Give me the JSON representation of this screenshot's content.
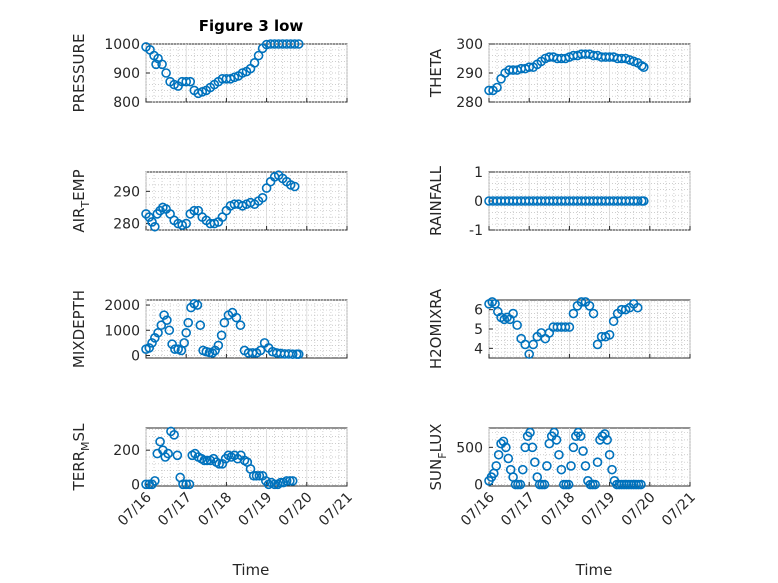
{
  "figure": {
    "title": "Figure 3 low",
    "xlabel": "Time",
    "xticks": [
      "07/16",
      "07/17",
      "07/18",
      "07/19",
      "07/20",
      "07/21"
    ],
    "xlim_days": [
      16,
      21
    ],
    "data_x_range_days": [
      16,
      19.85
    ],
    "marker": "circle",
    "color": "#0072bd"
  },
  "chart_data": [
    {
      "type": "scatter",
      "ylabel": "PRESSURE",
      "ylim": [
        800,
        1000
      ],
      "yticks": [
        "800",
        "900",
        "1000"
      ],
      "grid": true,
      "x_unit": "day of July",
      "x": [
        16.0,
        16.1,
        16.2,
        16.25,
        16.3,
        16.4,
        16.5,
        16.6,
        16.7,
        16.8,
        16.9,
        17.0,
        17.1,
        17.2,
        17.3,
        17.4,
        17.5,
        17.6,
        17.7,
        17.8,
        17.9,
        18.0,
        18.1,
        18.2,
        18.3,
        18.4,
        18.5,
        18.6,
        18.7,
        18.8,
        18.9,
        19.0,
        19.1,
        19.2,
        19.3,
        19.4,
        19.5,
        19.6,
        19.7,
        19.8
      ],
      "values": [
        990,
        980,
        960,
        930,
        950,
        930,
        900,
        870,
        860,
        855,
        870,
        870,
        870,
        840,
        830,
        835,
        840,
        850,
        860,
        870,
        880,
        880,
        880,
        885,
        890,
        900,
        905,
        915,
        935,
        960,
        985,
        998,
        1000,
        1000,
        1000,
        1000,
        1000,
        1000,
        1000,
        1000
      ]
    },
    {
      "type": "scatter",
      "ylabel": "THETA",
      "ylim": [
        280,
        300
      ],
      "yticks": [
        "280",
        "290",
        "300"
      ],
      "grid": true,
      "x_unit": "day of July",
      "x": [
        16.0,
        16.1,
        16.2,
        16.3,
        16.4,
        16.5,
        16.6,
        16.7,
        16.8,
        16.9,
        17.0,
        17.1,
        17.2,
        17.3,
        17.4,
        17.5,
        17.6,
        17.7,
        17.8,
        17.9,
        18.0,
        18.1,
        18.2,
        18.3,
        18.4,
        18.5,
        18.6,
        18.7,
        18.8,
        18.9,
        19.0,
        19.1,
        19.2,
        19.3,
        19.4,
        19.5,
        19.6,
        19.7,
        19.8,
        19.85
      ],
      "values": [
        284,
        284,
        285,
        288,
        290,
        291,
        291,
        291,
        291.5,
        291.5,
        292,
        292,
        293,
        294,
        295,
        295.5,
        295.5,
        295,
        295,
        295,
        295.5,
        296,
        296,
        296.5,
        296.5,
        296.5,
        296,
        296,
        295.5,
        295.5,
        295.5,
        295.5,
        295,
        295,
        295,
        294.5,
        294,
        293.5,
        292.5,
        292
      ]
    },
    {
      "type": "scatter",
      "ylabel": "AIR_TEMP",
      "ylim": [
        278,
        296
      ],
      "yticks": [
        "280",
        "290"
      ],
      "grid": true,
      "x_unit": "day of July",
      "x": [
        16.0,
        16.08,
        16.15,
        16.22,
        16.28,
        16.35,
        16.42,
        16.5,
        16.6,
        16.7,
        16.8,
        16.9,
        17.0,
        17.1,
        17.2,
        17.3,
        17.4,
        17.5,
        17.6,
        17.7,
        17.8,
        17.9,
        18.0,
        18.1,
        18.2,
        18.3,
        18.4,
        18.5,
        18.6,
        18.7,
        18.8,
        18.9,
        19.0,
        19.1,
        19.2,
        19.3,
        19.4,
        19.5,
        19.6,
        19.7
      ],
      "values": [
        283,
        282,
        280.5,
        279,
        283,
        284,
        285,
        284.5,
        283,
        281,
        280,
        279.5,
        280,
        283,
        284,
        284,
        282,
        281,
        280,
        280,
        280.5,
        282,
        284,
        285.5,
        286,
        286,
        285.5,
        286,
        286.5,
        286,
        287,
        288,
        291,
        293,
        294.5,
        295,
        294,
        293,
        292,
        291.5
      ]
    },
    {
      "type": "scatter",
      "ylabel": "RAINFALL",
      "ylim": [
        -1,
        1
      ],
      "yticks": [
        "-1",
        "0",
        "1"
      ],
      "grid": true,
      "x_unit": "day of July",
      "x": [
        16.0,
        16.1,
        16.2,
        16.3,
        16.4,
        16.5,
        16.6,
        16.7,
        16.8,
        16.9,
        17.0,
        17.1,
        17.2,
        17.3,
        17.4,
        17.5,
        17.6,
        17.7,
        17.8,
        17.9,
        18.0,
        18.1,
        18.2,
        18.3,
        18.4,
        18.5,
        18.6,
        18.7,
        18.8,
        18.9,
        19.0,
        19.1,
        19.2,
        19.3,
        19.4,
        19.5,
        19.6,
        19.7,
        19.8,
        19.85
      ],
      "values": [
        0,
        0,
        0,
        0,
        0,
        0,
        0,
        0,
        0,
        0,
        0,
        0,
        0,
        0,
        0,
        0,
        0,
        0,
        0,
        0,
        0,
        0,
        0,
        0,
        0,
        0,
        0,
        0,
        0,
        0,
        0,
        0,
        0,
        0,
        0,
        0,
        0,
        0,
        0,
        0
      ]
    },
    {
      "type": "scatter",
      "ylabel": "MIXDEPTH",
      "ylim": [
        -100,
        2200
      ],
      "yticks": [
        "0",
        "1000",
        "2000"
      ],
      "grid": true,
      "x_unit": "day of July",
      "x": [
        16.0,
        16.08,
        16.15,
        16.22,
        16.3,
        16.38,
        16.45,
        16.52,
        16.58,
        16.65,
        16.72,
        16.8,
        16.88,
        16.95,
        17.0,
        17.05,
        17.12,
        17.2,
        17.28,
        17.35,
        17.42,
        17.5,
        17.58,
        17.65,
        17.72,
        17.8,
        17.88,
        17.95,
        18.05,
        18.15,
        18.25,
        18.35,
        18.45,
        18.55,
        18.65,
        18.75,
        18.85,
        18.95,
        19.05,
        19.15,
        19.25,
        19.35,
        19.45,
        19.55,
        19.65,
        19.75,
        19.8
      ],
      "values": [
        250,
        300,
        500,
        700,
        900,
        1200,
        1600,
        1400,
        1000,
        450,
        250,
        250,
        200,
        500,
        900,
        1300,
        1900,
        2050,
        2000,
        1200,
        200,
        150,
        120,
        100,
        200,
        400,
        800,
        1300,
        1600,
        1700,
        1500,
        1200,
        200,
        100,
        100,
        100,
        200,
        500,
        300,
        150,
        100,
        80,
        60,
        60,
        50,
        50,
        50
      ]
    },
    {
      "type": "scatter",
      "ylabel": "H2OMIXRA",
      "ylim": [
        3.5,
        6.5
      ],
      "yticks": [
        "4",
        "5",
        "6"
      ],
      "grid": true,
      "x_unit": "day of July",
      "x": [
        16.0,
        16.08,
        16.15,
        16.22,
        16.3,
        16.38,
        16.45,
        16.52,
        16.6,
        16.7,
        16.8,
        16.9,
        17.0,
        17.1,
        17.2,
        17.3,
        17.4,
        17.5,
        17.6,
        17.7,
        17.8,
        17.9,
        18.0,
        18.1,
        18.2,
        18.3,
        18.4,
        18.5,
        18.6,
        18.7,
        18.8,
        18.9,
        19.0,
        19.1,
        19.2,
        19.3,
        19.4,
        19.5,
        19.6,
        19.7
      ],
      "values": [
        6.3,
        6.4,
        6.3,
        5.9,
        5.6,
        5.5,
        5.6,
        5.5,
        5.8,
        5.2,
        4.5,
        4.2,
        3.7,
        4.2,
        4.6,
        4.8,
        4.5,
        4.8,
        5.1,
        5.1,
        5.1,
        5.1,
        5.1,
        5.8,
        6.2,
        6.4,
        6.4,
        6.2,
        5.8,
        4.2,
        4.6,
        4.6,
        4.7,
        5.4,
        5.8,
        6.0,
        6.0,
        6.1,
        6.3,
        6.1
      ]
    },
    {
      "type": "scatter",
      "ylabel": "TERR_MSL",
      "ylim": [
        -10,
        330
      ],
      "yticks": [
        "0",
        "200"
      ],
      "grid": true,
      "x_unit": "day of July",
      "x": [
        16.0,
        16.08,
        16.15,
        16.22,
        16.28,
        16.35,
        16.42,
        16.48,
        16.55,
        16.62,
        16.7,
        16.78,
        16.85,
        16.92,
        17.0,
        17.08,
        17.15,
        17.22,
        17.3,
        17.38,
        17.45,
        17.52,
        17.6,
        17.68,
        17.75,
        17.82,
        17.9,
        17.98,
        18.05,
        18.12,
        18.2,
        18.28,
        18.36,
        18.45,
        18.52,
        18.6,
        18.68,
        18.75,
        18.82,
        18.9,
        18.98,
        19.05,
        19.12,
        19.2,
        19.28,
        19.35,
        19.42,
        19.5,
        19.58,
        19.65
      ],
      "values": [
        0,
        0,
        0,
        20,
        180,
        250,
        200,
        160,
        180,
        310,
        290,
        170,
        40,
        0,
        0,
        0,
        170,
        180,
        160,
        150,
        140,
        140,
        140,
        150,
        130,
        120,
        120,
        150,
        170,
        160,
        170,
        150,
        170,
        140,
        130,
        90,
        50,
        50,
        50,
        50,
        20,
        0,
        10,
        0,
        0,
        10,
        10,
        20,
        20,
        20
      ]
    },
    {
      "type": "scatter",
      "ylabel": "SUN_FLUX",
      "ylim": [
        -20,
        760
      ],
      "yticks": [
        "0",
        "500"
      ],
      "grid": true,
      "x_unit": "day of July",
      "x": [
        16.0,
        16.06,
        16.12,
        16.18,
        16.24,
        16.3,
        16.36,
        16.42,
        16.48,
        16.54,
        16.6,
        16.66,
        16.72,
        16.78,
        16.84,
        16.9,
        16.96,
        17.02,
        17.08,
        17.14,
        17.2,
        17.26,
        17.32,
        17.38,
        17.44,
        17.5,
        17.56,
        17.62,
        17.68,
        17.74,
        17.8,
        17.86,
        17.92,
        17.98,
        18.04,
        18.1,
        18.16,
        18.22,
        18.28,
        18.34,
        18.4,
        18.46,
        18.52,
        18.58,
        18.64,
        18.7,
        18.76,
        18.82,
        18.88,
        18.94,
        19.0,
        19.06,
        19.12,
        19.18,
        19.24,
        19.3,
        19.36,
        19.42,
        19.48,
        19.54,
        19.6,
        19.66,
        19.72,
        19.78
      ],
      "values": [
        50,
        100,
        150,
        250,
        400,
        550,
        580,
        500,
        350,
        200,
        100,
        0,
        0,
        0,
        200,
        500,
        650,
        700,
        500,
        300,
        100,
        0,
        0,
        0,
        250,
        550,
        650,
        700,
        600,
        400,
        200,
        0,
        0,
        0,
        250,
        500,
        650,
        700,
        650,
        450,
        250,
        50,
        0,
        0,
        0,
        300,
        600,
        650,
        680,
        600,
        400,
        200,
        50,
        0,
        0,
        0,
        0,
        0,
        0,
        0,
        0,
        0,
        0,
        0
      ]
    }
  ]
}
